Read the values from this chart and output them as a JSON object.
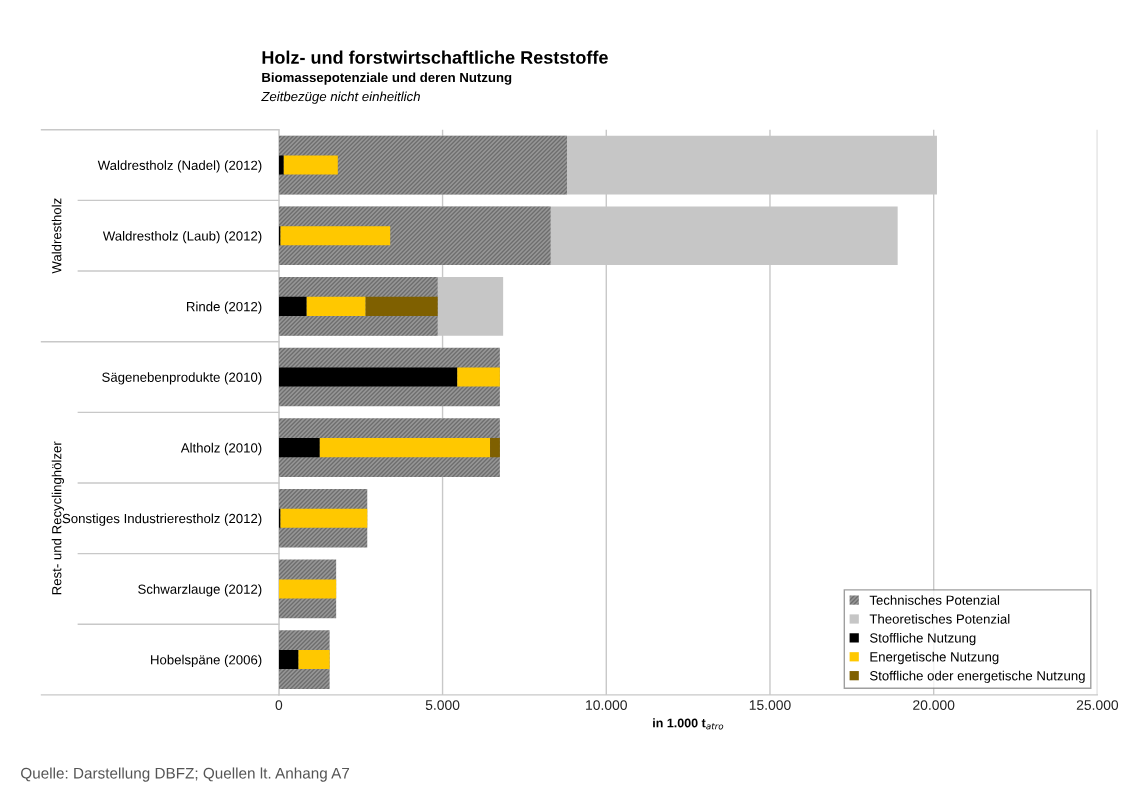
{
  "chart_data": {
    "type": "bar",
    "orientation": "horizontal",
    "title": "Holz- und forstwirtschaftliche Reststoffe",
    "subtitle": "Biomassepotenziale und deren Nutzung",
    "xlabel": "in 1.000 t$_{atro}$",
    "categories": [
      "Waldrestholz (Nadel) (2012)",
      "Waldrestholz (Laub) (2012)",
      "Rinde (2012)",
      "Sägenebenprodukte (2010)",
      "Altholz (2010)",
      "Sonstiges Industrierestholz (2012)",
      "Schwarzlauge (2012)",
      "Hobelspäne (2006)"
    ],
    "series": [
      {
        "name": "Theoretisches Potenzial",
        "color": "#c6c6c6",
        "values": [
          20100,
          18900,
          6850,
          null,
          null,
          null,
          null,
          null
        ]
      },
      {
        "name": "Technisches Potenzial",
        "color": "#969696",
        "values": [
          8800,
          8300,
          4850,
          6750,
          6750,
          2700,
          1750,
          1550
        ]
      },
      {
        "name": "Stoffliche Nutzung",
        "color": "#000000",
        "values": [
          150,
          50,
          850,
          5450,
          1250,
          50,
          null,
          600
        ],
        "base": [
          0,
          0,
          0,
          0,
          0,
          0,
          null,
          0
        ]
      },
      {
        "name": "Energetische Nutzung",
        "color": "#ffc800",
        "values": [
          1650,
          3350,
          1800,
          1300,
          5200,
          2650,
          1750,
          950
        ],
        "base": [
          150,
          50,
          850,
          5450,
          1250,
          50,
          0,
          600
        ]
      },
      {
        "name": "Stoffliche oder energetische Nutzung",
        "color": "#7f6000",
        "values": [
          null,
          null,
          2200,
          null,
          300,
          null,
          null,
          null
        ],
        "base": [
          null,
          null,
          2650,
          null,
          6450,
          null,
          null,
          null
        ]
      }
    ],
    "xlim": [
      0,
      25000
    ],
    "xticks": [
      0,
      {
        "value": 5000,
        "label": "5.000"
      },
      {
        "value": 10000,
        "label": "10.000"
      },
      {
        "value": 15000,
        "label": "15.000"
      },
      {
        "value": 20000,
        "label": "20.000"
      },
      {
        "value": 25000,
        "label": "25.000"
      }
    ],
    "grid": "x",
    "legend": "bottom right",
    "annotations": [
      "Zeitbezüge nicht einheitlich",
      "Waldrestholz",
      "Rest- und Recyclinghölzer",
      "Quelle: Darstellung DBFZ; Quellen lt. Anhang A7"
    ]
  }
}
